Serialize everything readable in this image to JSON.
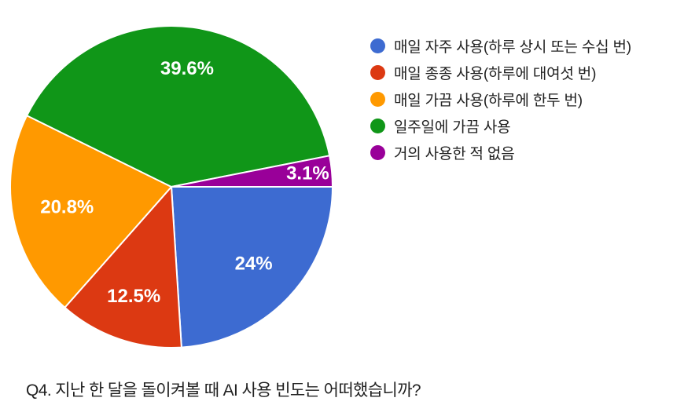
{
  "question": {
    "text": "Q4. 지난 한 달을 돌이켜볼 때 AI 사용 빈도는 어떠했습니까?"
  },
  "chart_data": {
    "type": "pie",
    "title": "Q4. 지난 한 달을 돌이켜볼 때 AI 사용 빈도는 어떠했습니까?",
    "legend_position": "right",
    "direction": "clockwise",
    "start_angle": "east",
    "slices": [
      {
        "label": "매일 자주 사용(하루 상시 또는 수십 번)",
        "value": 24,
        "display": "24%",
        "color": "#3D6BD1"
      },
      {
        "label": "매일 종종 사용(하루에 대여섯 번)",
        "value": 12.5,
        "display": "12.5%",
        "color": "#DC3912"
      },
      {
        "label": "매일 가끔 사용(하루에 한두 번)",
        "value": 20.8,
        "display": "20.8%",
        "color": "#FF9900"
      },
      {
        "label": "일주일에 가끔 사용",
        "value": 39.6,
        "display": "39.6%",
        "color": "#109618"
      },
      {
        "label": "거의 사용한 적 없음",
        "value": 3.1,
        "display": "3.1%",
        "color": "#990099"
      }
    ]
  }
}
